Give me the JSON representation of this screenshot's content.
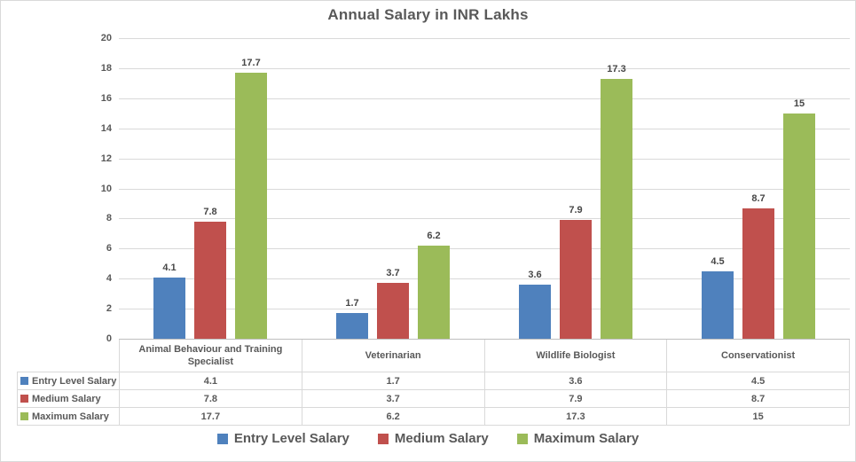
{
  "chart_data": {
    "type": "bar",
    "title": "Annual Salary in INR Lakhs",
    "categories": [
      "Animal Behaviour and Training Specialist",
      "Veterinarian",
      "Wildlife Biologist",
      "Conservationist"
    ],
    "series": [
      {
        "name": "Entry Level Salary",
        "color": "#4F81BD",
        "values": [
          4.1,
          1.7,
          3.6,
          4.5
        ]
      },
      {
        "name": "Medium Salary",
        "color": "#C0504D",
        "values": [
          7.8,
          3.7,
          7.9,
          8.7
        ]
      },
      {
        "name": "Maximum Salary",
        "color": "#9BBB59",
        "values": [
          17.7,
          6.2,
          17.3,
          15
        ]
      }
    ],
    "ylabel": "",
    "xlabel": "",
    "ylim": [
      0,
      20
    ],
    "y_ticks": [
      0,
      2,
      4,
      6,
      8,
      10,
      12,
      14,
      16,
      18,
      20
    ],
    "grid": true,
    "legend_position": "bottom",
    "data_table_shown": true,
    "colors": {
      "title_text": "#595959",
      "axis_text": "#595959",
      "gridline": "#D9D9D9",
      "axis_line": "#BFBFBF",
      "table_border": "#D9D9D9"
    }
  }
}
